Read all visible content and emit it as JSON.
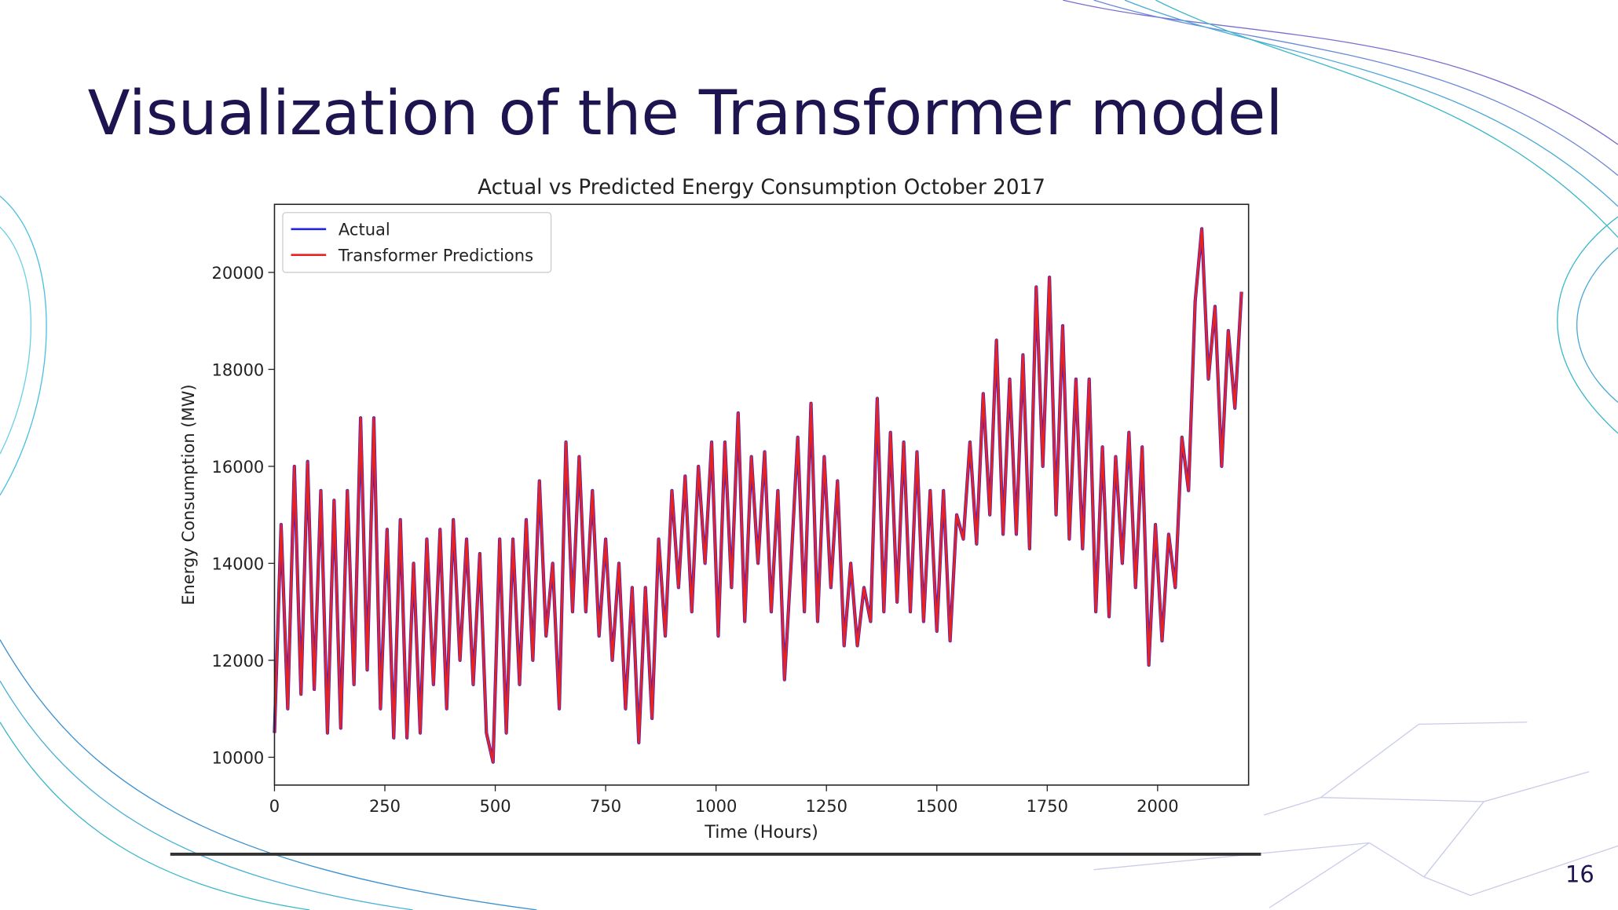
{
  "slide": {
    "title": "Visualization of the Transformer model",
    "page_number": "16"
  },
  "chart_data": {
    "type": "line",
    "title": "Actual vs Predicted Energy Consumption October 2017",
    "x_label": "Time (Hours)",
    "y_label": "Energy Consumption (MW)",
    "xlim": [
      0,
      2206
    ],
    "ylim": [
      9426,
      21404
    ],
    "xticks": [
      0,
      250,
      500,
      750,
      1000,
      1250,
      1500,
      1750,
      2000
    ],
    "yticks": [
      10000,
      12000,
      14000,
      16000,
      18000,
      20000
    ],
    "legend": "upper left",
    "x": [
      0,
      15,
      30,
      45,
      60,
      75,
      90,
      105,
      120,
      135,
      150,
      165,
      180,
      195,
      210,
      225,
      240,
      255,
      270,
      285,
      300,
      315,
      330,
      345,
      360,
      375,
      390,
      405,
      420,
      435,
      450,
      465,
      480,
      495,
      510,
      525,
      540,
      555,
      570,
      585,
      600,
      615,
      630,
      645,
      660,
      675,
      690,
      705,
      720,
      735,
      750,
      765,
      780,
      795,
      810,
      825,
      840,
      855,
      870,
      885,
      900,
      915,
      930,
      945,
      960,
      975,
      990,
      1005,
      1020,
      1035,
      1050,
      1065,
      1080,
      1095,
      1110,
      1125,
      1140,
      1155,
      1170,
      1185,
      1200,
      1215,
      1230,
      1245,
      1260,
      1275,
      1290,
      1305,
      1320,
      1335,
      1350,
      1365,
      1380,
      1395,
      1410,
      1425,
      1440,
      1455,
      1470,
      1485,
      1500,
      1515,
      1530,
      1545,
      1560,
      1575,
      1590,
      1605,
      1620,
      1635,
      1650,
      1665,
      1680,
      1695,
      1710,
      1725,
      1740,
      1755,
      1770,
      1785,
      1800,
      1815,
      1830,
      1845,
      1860,
      1875,
      1890,
      1905,
      1920,
      1935,
      1950,
      1965,
      1980,
      1995,
      2010,
      2025,
      2040,
      2055,
      2070,
      2085,
      2100,
      2115,
      2130,
      2145,
      2160,
      2175,
      2190
    ],
    "series": [
      {
        "name": "Actual",
        "color": "#2222ee",
        "values": [
          10500,
          14800,
          11000,
          16000,
          11300,
          16100,
          11400,
          15500,
          10500,
          15300,
          10600,
          15500,
          11500,
          17000,
          11800,
          17000,
          11000,
          14700,
          10400,
          14900,
          10400,
          14000,
          10500,
          14500,
          11500,
          14700,
          11000,
          14900,
          12000,
          14500,
          11500,
          14200,
          10500,
          9900,
          14500,
          10500,
          14500,
          11500,
          14900,
          12000,
          15700,
          12500,
          14000,
          11000,
          16500,
          13000,
          16200,
          13000,
          15500,
          12500,
          14500,
          12000,
          14000,
          11000,
          13500,
          10300,
          13500,
          10800,
          14500,
          12500,
          15500,
          13500,
          15800,
          13000,
          16000,
          14000,
          16500,
          12500,
          16500,
          13500,
          17100,
          12800,
          16200,
          14000,
          16300,
          13000,
          15500,
          11600,
          14000,
          16600,
          13000,
          17300,
          12800,
          16200,
          13500,
          15700,
          12300,
          14000,
          12300,
          13500,
          12800,
          17400,
          13000,
          16700,
          13200,
          16500,
          13000,
          16300,
          12800,
          15500,
          12600,
          15500,
          12400,
          15000,
          14500,
          16500,
          14400,
          17500,
          15000,
          18600,
          14600,
          17800,
          14600,
          18300,
          14300,
          19700,
          16000,
          19900,
          15000,
          18900,
          14500,
          17800,
          14300,
          17800,
          13000,
          16400,
          12900,
          16200,
          14000,
          16700,
          13500,
          16400,
          11900,
          14800,
          12400,
          14600,
          13500,
          16600,
          15500,
          19400,
          20900,
          17800,
          19300,
          16000,
          18800,
          17200,
          19600
        ]
      },
      {
        "name": "Transformer Predictions",
        "color": "#e8221e",
        "values": [
          10500,
          14800,
          11000,
          16000,
          11300,
          16100,
          11400,
          15500,
          10500,
          15300,
          10600,
          15500,
          11500,
          17000,
          11800,
          17000,
          11000,
          14700,
          10400,
          14900,
          10400,
          14000,
          10500,
          14500,
          11500,
          14700,
          11000,
          14900,
          12000,
          14500,
          11500,
          14200,
          10500,
          9900,
          14500,
          10500,
          14500,
          11500,
          14900,
          12000,
          15700,
          12500,
          14000,
          11000,
          16500,
          13000,
          16200,
          13000,
          15500,
          12500,
          14500,
          12000,
          14000,
          11000,
          13500,
          10300,
          13500,
          10800,
          14500,
          12500,
          15500,
          13500,
          15800,
          13000,
          16000,
          14000,
          16500,
          12500,
          16500,
          13500,
          17100,
          12800,
          16200,
          14000,
          16300,
          13000,
          15500,
          11600,
          14000,
          16600,
          13000,
          17300,
          12800,
          16200,
          13500,
          15700,
          12300,
          14000,
          12300,
          13500,
          12800,
          17400,
          13000,
          16700,
          13200,
          16500,
          13000,
          16300,
          12800,
          15500,
          12600,
          15500,
          12400,
          15000,
          14500,
          16500,
          14400,
          17500,
          15000,
          18600,
          14600,
          17800,
          14600,
          18300,
          14300,
          19700,
          16000,
          19900,
          15000,
          18900,
          14500,
          17800,
          14300,
          17800,
          13000,
          16400,
          12900,
          16200,
          14000,
          16700,
          13500,
          16400,
          11900,
          14800,
          12400,
          14600,
          13500,
          16600,
          15500,
          19400,
          20900,
          17800,
          19300,
          16000,
          18800,
          17200,
          19600
        ]
      }
    ]
  }
}
